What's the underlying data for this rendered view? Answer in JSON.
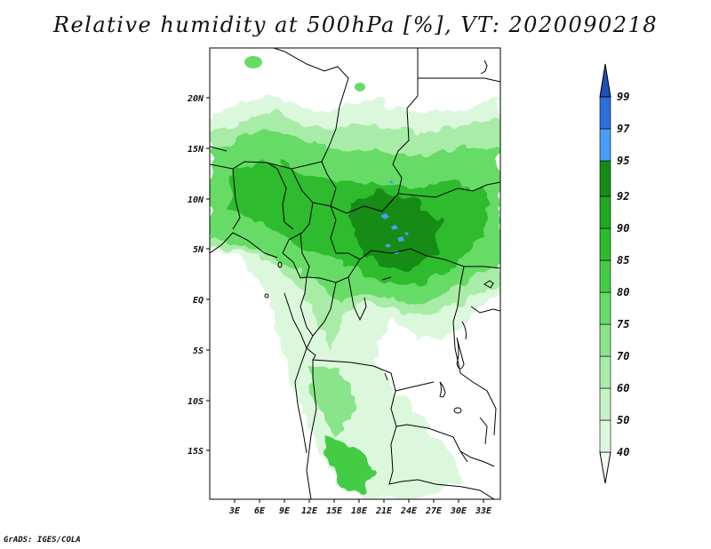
{
  "title": "Relative humidity at 500hPa [%], VT: 2020090218",
  "footer": "GrADS: IGES/COLA",
  "map": {
    "lon_labels": [
      "3E",
      "6E",
      "9E",
      "12E",
      "15E",
      "18E",
      "21E",
      "24E",
      "27E",
      "30E",
      "33E"
    ],
    "lat_labels": [
      "20N",
      "15N",
      "10N",
      "5N",
      "EQ",
      "5S",
      "10S",
      "15S"
    ]
  },
  "colorbar": {
    "labels": [
      "40",
      "50",
      "60",
      "70",
      "75",
      "80",
      "85",
      "90",
      "92",
      "95",
      "97",
      "99"
    ],
    "colors": [
      "#f0fcf0",
      "#dcf8dc",
      "#c4f2c4",
      "#a8eca8",
      "#8ae48a",
      "#66dc66",
      "#44cc44",
      "#2ebc2e",
      "#20a820",
      "#148c14",
      "#4a9ef5",
      "#2d6fd9",
      "#1e4fb8"
    ]
  },
  "chart_data": {
    "type": "heatmap",
    "title": "Relative humidity at 500hPa [%], VT: 2020090218",
    "variable": "Relative humidity",
    "level": "500hPa",
    "units": "%",
    "valid_time": "2020090218",
    "x_ticks": [
      "3E",
      "6E",
      "9E",
      "12E",
      "15E",
      "18E",
      "21E",
      "24E",
      "27E",
      "30E",
      "33E"
    ],
    "y_ticks": [
      "20N",
      "15N",
      "10N",
      "5N",
      "EQ",
      "5S",
      "10S",
      "15S"
    ],
    "levels": [
      40,
      50,
      60,
      70,
      75,
      80,
      85,
      90,
      92,
      95,
      97,
      99
    ]
  }
}
